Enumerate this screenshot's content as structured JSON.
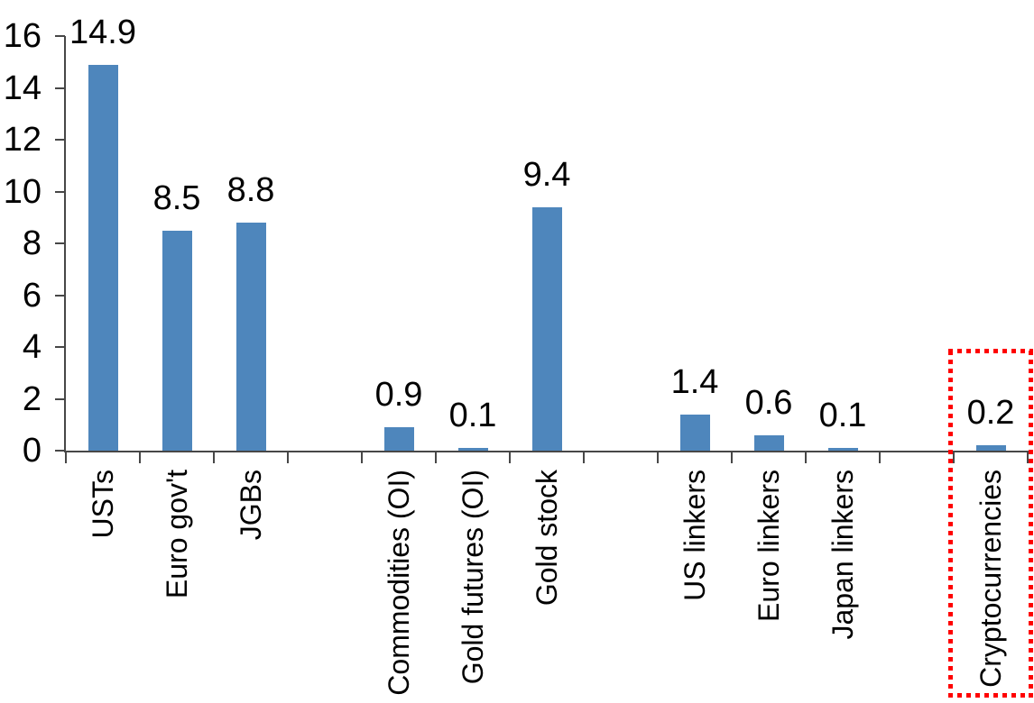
{
  "chart_data": {
    "type": "bar",
    "title": "",
    "xlabel": "",
    "ylabel": "",
    "categories": [
      "USTs",
      "Euro gov't",
      "JGBs",
      "",
      "Commodities (OI)",
      "Gold futures (OI)",
      "Gold stock",
      "",
      "US linkers",
      "Euro linkers",
      "Japan linkers",
      "",
      "Cryptocurrencies"
    ],
    "values": [
      14.9,
      8.5,
      8.8,
      null,
      0.9,
      0.1,
      9.4,
      null,
      1.4,
      0.6,
      0.1,
      null,
      0.2
    ],
    "data_labels": [
      "14.9",
      "8.5",
      "8.8",
      "",
      "0.9",
      "0.1",
      "9.4",
      "",
      "1.4",
      "0.6",
      "0.1",
      "",
      "0.2"
    ],
    "ylim": [
      0,
      16
    ],
    "yticks": [
      0,
      2,
      4,
      6,
      8,
      10,
      12,
      14,
      16
    ],
    "grid": false,
    "legend": false,
    "bar_color": "#4E86BC",
    "axis_color": "#474747",
    "text_color": "#000000",
    "background_color": "#FFFFFF",
    "highlight": {
      "label": "Cryptocurrencies",
      "border_color": "#FF0000",
      "border_style": "dotted"
    }
  }
}
